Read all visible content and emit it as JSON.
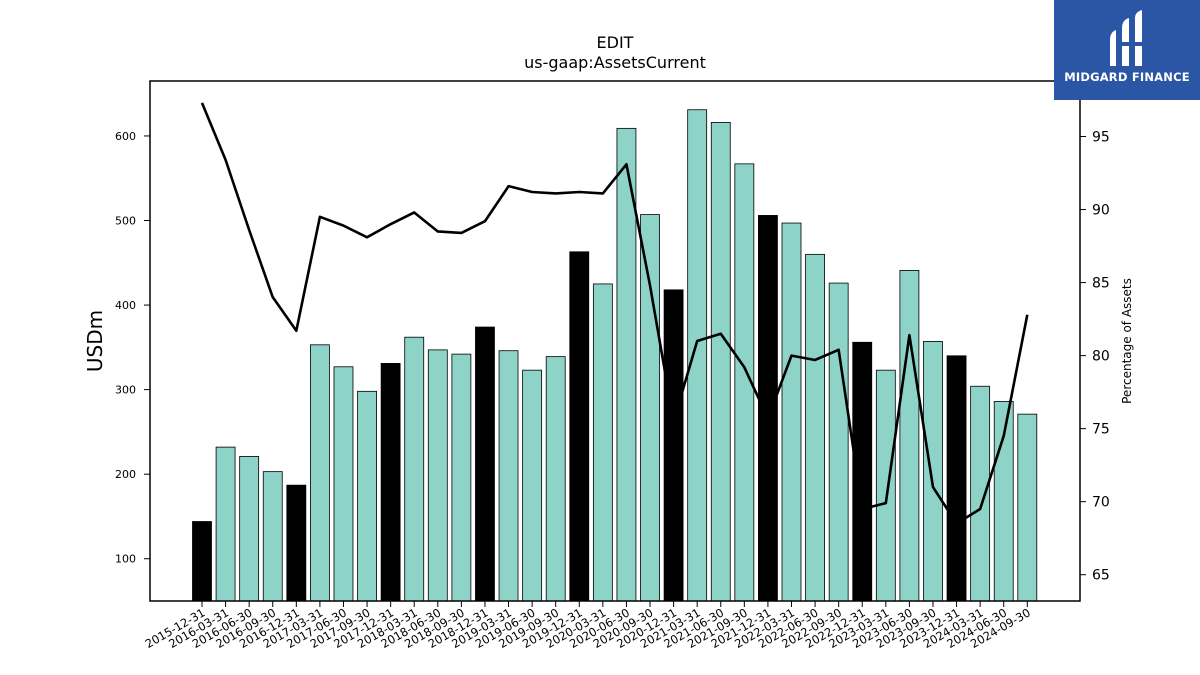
{
  "chart_data": {
    "type": "bar",
    "title": "EDIT",
    "subtitle": "us-gaap:AssetsCurrent",
    "ylabel": "USDm",
    "y2label": "Percentage of Assets",
    "ylim": [
      50,
      665
    ],
    "y2lim": [
      63.2,
      98.8
    ],
    "yticks": [
      100,
      200,
      300,
      400,
      500,
      600
    ],
    "y2ticks": [
      65,
      70,
      75,
      80,
      85,
      90,
      95
    ],
    "categories": [
      "2015-12-31",
      "2016-03-31",
      "2016-06-30",
      "2016-09-30",
      "2016-12-31",
      "2017-03-31",
      "2017-06-30",
      "2017-09-30",
      "2017-12-31",
      "2018-03-31",
      "2018-06-30",
      "2018-09-30",
      "2018-12-31",
      "2019-03-31",
      "2019-06-30",
      "2019-09-30",
      "2019-12-31",
      "2020-03-31",
      "2020-06-30",
      "2020-09-30",
      "2020-12-31",
      "2021-03-31",
      "2021-06-30",
      "2021-09-30",
      "2021-12-31",
      "2022-03-31",
      "2022-06-30",
      "2022-09-30",
      "2022-12-31",
      "2023-03-31",
      "2023-06-30",
      "2023-09-30",
      "2023-12-31",
      "2024-03-31",
      "2024-06-30",
      "2024-09-30"
    ],
    "series": [
      {
        "kind": "bar",
        "values": [
          144,
          232,
          221,
          203,
          187,
          353,
          327,
          298,
          331,
          362,
          347,
          342,
          374,
          346,
          323,
          339,
          463,
          425,
          609,
          507,
          418,
          631,
          616,
          567,
          506,
          497,
          460,
          426,
          356,
          323,
          441,
          357,
          340,
          304,
          286,
          271
        ]
      },
      {
        "kind": "line",
        "axis": "right",
        "values": [
          97.3,
          93.4,
          88.6,
          84.0,
          81.7,
          89.5,
          88.9,
          88.1,
          89.0,
          89.8,
          88.5,
          88.4,
          89.2,
          91.6,
          91.2,
          91.1,
          91.2,
          91.1,
          93.1,
          84.8,
          75.5,
          81.0,
          81.5,
          79.2,
          75.7,
          80.0,
          79.7,
          80.4,
          69.5,
          69.9,
          81.4,
          71.0,
          68.5,
          69.5,
          74.5,
          82.8
        ]
      }
    ],
    "highlight_color": "#000000",
    "bar_color": "#8dd3c7",
    "line_color": "#000000",
    "grid": false
  },
  "logo": {
    "text": "MIDGARD FINANCE",
    "background": "#2a56a5"
  }
}
